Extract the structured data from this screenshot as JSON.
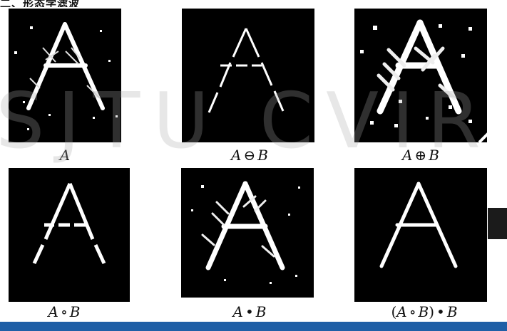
{
  "header": {
    "fragment": "二、形态学滤波"
  },
  "panels": [
    {
      "caption_parts": [
        [
          "it",
          "A"
        ]
      ]
    },
    {
      "caption_parts": [
        [
          "it",
          "A"
        ],
        [
          "op",
          "⊖"
        ],
        [
          "it",
          "B"
        ]
      ]
    },
    {
      "caption_parts": [
        [
          "it",
          "A"
        ],
        [
          "op",
          "⊕"
        ],
        [
          "it",
          "B"
        ]
      ]
    },
    {
      "caption_parts": [
        [
          "it",
          "A"
        ],
        [
          "op",
          "∘"
        ],
        [
          "it",
          "B"
        ]
      ]
    },
    {
      "caption_parts": [
        [
          "it",
          "A"
        ],
        [
          "op",
          "•"
        ],
        [
          "it",
          "B"
        ]
      ]
    },
    {
      "caption_parts": [
        [
          "op",
          "("
        ],
        [
          "it",
          "A"
        ],
        [
          "op",
          "∘"
        ],
        [
          "it",
          "B"
        ],
        [
          "op",
          ")"
        ],
        [
          "op",
          "•"
        ],
        [
          "it",
          "B"
        ]
      ]
    }
  ],
  "watermark": {
    "text": "SJTU CVIR"
  },
  "colors": {
    "accent_bar": "#1f5fa6",
    "panel_bg": "#000000",
    "letter": "#ffffff"
  },
  "icons": {
    "chevron": "chevron-up-icon"
  }
}
